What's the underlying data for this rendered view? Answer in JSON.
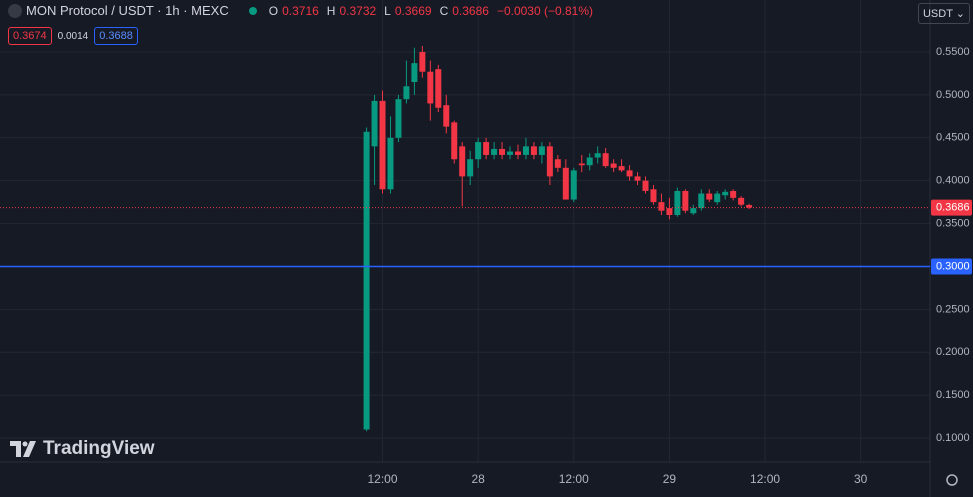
{
  "chart_data": {
    "type": "candlestick",
    "symbol": "MON Protocol / USDT · 1h · MEXC",
    "legend": {
      "o_label": "O",
      "o": 0.3716,
      "h_label": "H",
      "h": 0.3732,
      "l_label": "L",
      "l": 0.3669,
      "c_label": "C",
      "c": 0.3686,
      "change": "−0.0030 (−0.81%)"
    },
    "badges": {
      "bid": 0.3674,
      "spread": 0.0014,
      "ask": 0.3688
    },
    "currency_button": "USDT",
    "watermark": "TradingView",
    "up_color": "#089981",
    "down_color": "#f23645",
    "x": [
      10,
      11,
      12,
      13,
      14,
      15,
      16,
      17,
      18,
      19,
      20,
      21,
      22,
      23,
      24,
      25,
      26,
      27,
      28,
      29,
      30,
      31,
      32,
      33,
      34,
      35,
      36,
      37,
      38,
      39,
      40,
      41,
      42,
      43,
      44,
      45,
      46,
      47,
      48,
      49,
      50,
      51,
      52,
      53,
      54,
      55,
      56,
      57,
      58
    ],
    "open": [
      0.11,
      0.44,
      0.493,
      0.39,
      0.45,
      0.495,
      0.515,
      0.55,
      0.527,
      0.53,
      0.488,
      0.468,
      0.44,
      0.405,
      0.425,
      0.445,
      0.43,
      0.437,
      0.43,
      0.434,
      0.43,
      0.44,
      0.43,
      0.44,
      0.425,
      0.415,
      0.378,
      0.42,
      0.418,
      0.427,
      0.432,
      0.42,
      0.417,
      0.412,
      0.405,
      0.4,
      0.39,
      0.375,
      0.368,
      0.36,
      0.388,
      0.362,
      0.368,
      0.385,
      0.375,
      0.383,
      0.388,
      0.38,
      0.3716
    ],
    "high": [
      0.462,
      0.5,
      0.505,
      0.475,
      0.5,
      0.54,
      0.555,
      0.557,
      0.54,
      0.535,
      0.5,
      0.47,
      0.445,
      0.435,
      0.45,
      0.45,
      0.445,
      0.445,
      0.44,
      0.442,
      0.45,
      0.445,
      0.445,
      0.445,
      0.43,
      0.425,
      0.415,
      0.43,
      0.432,
      0.44,
      0.438,
      0.425,
      0.425,
      0.418,
      0.41,
      0.405,
      0.395,
      0.385,
      0.38,
      0.392,
      0.39,
      0.372,
      0.39,
      0.39,
      0.388,
      0.39,
      0.39,
      0.382,
      0.3732
    ],
    "low": [
      0.108,
      0.395,
      0.385,
      0.385,
      0.445,
      0.49,
      0.5,
      0.52,
      0.47,
      0.48,
      0.455,
      0.42,
      0.37,
      0.395,
      0.415,
      0.425,
      0.425,
      0.425,
      0.425,
      0.425,
      0.425,
      0.425,
      0.42,
      0.395,
      0.41,
      0.378,
      0.375,
      0.41,
      0.412,
      0.42,
      0.415,
      0.41,
      0.41,
      0.4,
      0.395,
      0.385,
      0.372,
      0.36,
      0.355,
      0.358,
      0.362,
      0.36,
      0.365,
      0.375,
      0.372,
      0.378,
      0.377,
      0.37,
      0.3669
    ],
    "close": [
      0.457,
      0.493,
      0.39,
      0.45,
      0.495,
      0.51,
      0.537,
      0.527,
      0.49,
      0.485,
      0.463,
      0.425,
      0.405,
      0.425,
      0.445,
      0.43,
      0.437,
      0.43,
      0.434,
      0.43,
      0.44,
      0.43,
      0.44,
      0.405,
      0.415,
      0.378,
      0.412,
      0.418,
      0.427,
      0.432,
      0.417,
      0.415,
      0.412,
      0.405,
      0.4,
      0.388,
      0.375,
      0.365,
      0.36,
      0.388,
      0.365,
      0.368,
      0.385,
      0.378,
      0.385,
      0.387,
      0.38,
      0.372,
      0.3686
    ],
    "xlim": [
      -36,
      80.7
    ],
    "xticks": [
      {
        "value": 12,
        "label": "12:00"
      },
      {
        "value": 24,
        "label": "28"
      },
      {
        "value": 36,
        "label": "12:00"
      },
      {
        "value": 48,
        "label": "29"
      },
      {
        "value": 60,
        "label": "12:00"
      },
      {
        "value": 72,
        "label": "30"
      }
    ],
    "ylim": [
      0.0721,
      0.6106
    ],
    "yticks": [
      {
        "value": 0.1,
        "label": "0.1000"
      },
      {
        "value": 0.15,
        "label": "0.1500"
      },
      {
        "value": 0.2,
        "label": "0.2000"
      },
      {
        "value": 0.25,
        "label": "0.2500"
      },
      {
        "value": 0.3,
        "label": "0.3000"
      },
      {
        "value": 0.35,
        "label": "0.3500"
      },
      {
        "value": 0.4,
        "label": "0.4000"
      },
      {
        "value": 0.45,
        "label": "0.4500"
      },
      {
        "value": 0.5,
        "label": "0.5000"
      },
      {
        "value": 0.55,
        "label": "0.5500"
      }
    ],
    "grid": true,
    "last_price": {
      "value": 0.3686,
      "label": "0.3686",
      "color": "#f23645"
    },
    "hline": {
      "value": 0.3,
      "label": "0.3000",
      "color": "#2962ff"
    }
  }
}
